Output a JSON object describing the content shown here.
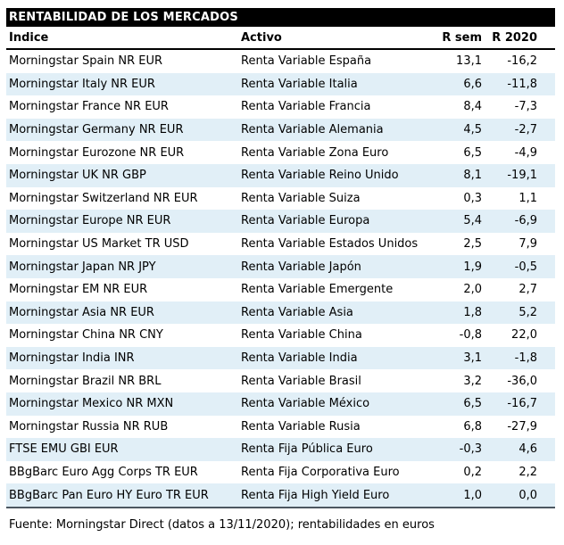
{
  "title": "RENTABILIDAD DE LOS MERCADOS",
  "footer": "Fuente: Morningstar Direct (datos a 13/11/2020); rentabilidades en euros",
  "colors": {
    "title_bar_bg": "#000000",
    "title_bar_text": "#ffffff",
    "row_alt_bg": "#e1eff7",
    "header_underline": "#000000",
    "bottom_rule": "#4c5761",
    "body_text": "#000000"
  },
  "chart_data": {
    "type": "table",
    "title": "RENTABILIDAD DE LOS MERCADOS",
    "columns": [
      "Índice",
      "Activo",
      "R sem",
      "R 2020"
    ],
    "rows": [
      [
        "Morningstar Spain NR EUR",
        "Renta Variable España",
        "13,1",
        "-16,2"
      ],
      [
        "Morningstar Italy NR EUR",
        "Renta Variable Italia",
        "6,6",
        "-11,8"
      ],
      [
        "Morningstar France NR EUR",
        "Renta Variable Francia",
        "8,4",
        "-7,3"
      ],
      [
        "Morningstar Germany NR EUR",
        "Renta Variable Alemania",
        "4,5",
        "-2,7"
      ],
      [
        "Morningstar Eurozone NR EUR",
        "Renta Variable Zona Euro",
        "6,5",
        "-4,9"
      ],
      [
        "Morningstar UK NR GBP",
        "Renta Variable Reino Unido",
        "8,1",
        "-19,1"
      ],
      [
        "Morningstar Switzerland NR EUR",
        "Renta Variable Suiza",
        "0,3",
        "1,1"
      ],
      [
        "Morningstar Europe NR EUR",
        "Renta Variable Europa",
        "5,4",
        "-6,9"
      ],
      [
        "Morningstar US Market TR USD",
        "Renta Variable Estados Unidos",
        "2,5",
        "7,9"
      ],
      [
        "Morningstar Japan NR JPY",
        "Renta Variable Japón",
        "1,9",
        "-0,5"
      ],
      [
        "Morningstar EM NR EUR",
        "Renta Variable Emergente",
        "2,0",
        "2,7"
      ],
      [
        "Morningstar Asia NR EUR",
        "Renta Variable Asia",
        "1,8",
        "5,2"
      ],
      [
        "Morningstar China NR CNY",
        "Renta Variable China",
        "-0,8",
        "22,0"
      ],
      [
        "Morningstar India INR",
        "Renta Variable India",
        "3,1",
        "-1,8"
      ],
      [
        "Morningstar Brazil NR BRL",
        "Renta Variable Brasil",
        "3,2",
        "-36,0"
      ],
      [
        "Morningstar Mexico NR MXN",
        "Renta Variable México",
        "6,5",
        "-16,7"
      ],
      [
        "Morningstar Russia NR RUB",
        "Renta Variable Rusia",
        "6,8",
        "-27,9"
      ],
      [
        "FTSE EMU GBI EUR",
        "Renta Fija Pública Euro",
        "-0,3",
        "4,6"
      ],
      [
        "BBgBarc Euro Agg Corps TR EUR",
        "Renta Fija Corporativa Euro",
        "0,2",
        "2,2"
      ],
      [
        "BBgBarc Pan Euro HY Euro TR EUR",
        "Renta Fija High Yield Euro",
        "1,0",
        "0,0"
      ]
    ]
  }
}
